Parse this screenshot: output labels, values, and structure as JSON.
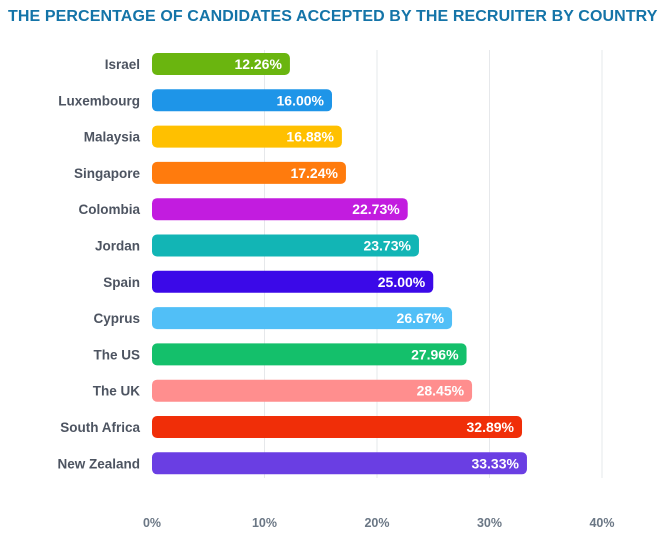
{
  "chart_data": {
    "type": "bar",
    "orientation": "horizontal",
    "title": "THE PERCENTAGE OF CANDIDATES ACCEPTED BY THE RECRUITER BY COUNTRY",
    "xlabel": "",
    "ylabel": "",
    "categories": [
      "Israel",
      "Luxembourg",
      "Malaysia",
      "Singapore",
      "Colombia",
      "Jordan",
      "Spain",
      "Cyprus",
      "The US",
      "The UK",
      "South Africa",
      "New Zealand"
    ],
    "values": [
      12.26,
      16.0,
      16.88,
      17.24,
      22.73,
      23.73,
      25.0,
      26.67,
      27.96,
      28.45,
      32.89,
      33.33
    ],
    "value_labels": [
      "12.26%",
      "16.00%",
      "16.88%",
      "17.24%",
      "22.73%",
      "23.73%",
      "25.00%",
      "26.67%",
      "27.96%",
      "28.45%",
      "32.89%",
      "33.33%"
    ],
    "colors": [
      "#6ab50f",
      "#1e95e8",
      "#ffc000",
      "#ff7b0d",
      "#c21cdf",
      "#12b5b5",
      "#3b09e8",
      "#51bff7",
      "#14c06b",
      "#ff8e8e",
      "#f02e08",
      "#6a3ee3"
    ],
    "xlim": [
      0,
      40
    ],
    "x_ticks": [
      0,
      10,
      20,
      30,
      40
    ],
    "x_tick_labels": [
      "0%",
      "10%",
      "20%",
      "30%",
      "40%"
    ],
    "grid": true,
    "title_color": "#1474a8"
  }
}
